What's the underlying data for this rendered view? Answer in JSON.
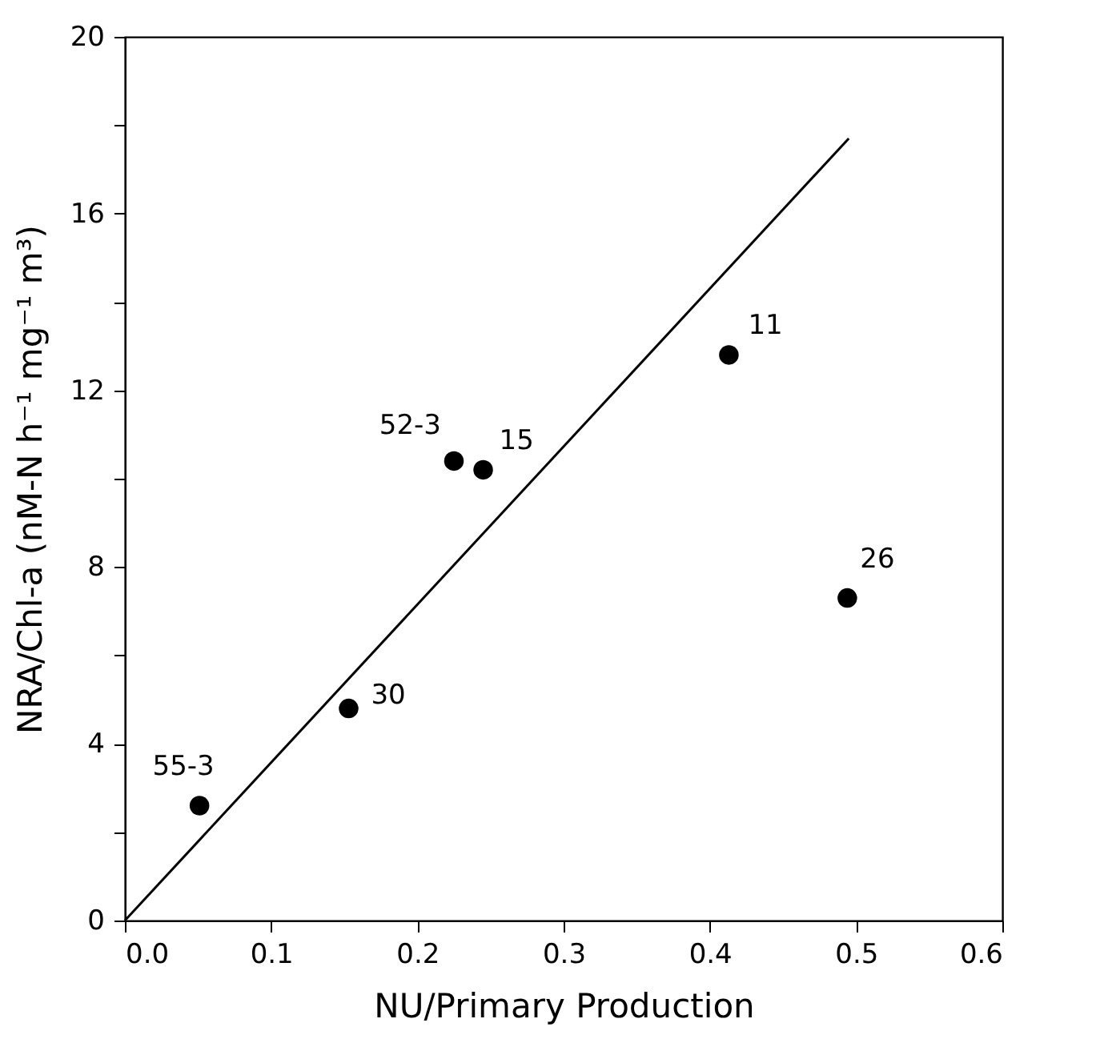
{
  "chart_data": {
    "type": "scatter",
    "xlabel": "NU/Primary Production",
    "ylabel": "NRA/Chl-a (nM-N h⁻¹ mg⁻¹ m³)",
    "xlim": [
      0,
      0.6
    ],
    "xticks": [
      {
        "value": 0,
        "label": "0.0"
      },
      0.1,
      0.2,
      0.3,
      0.4,
      0.5,
      0.6
    ],
    "ylim": [
      0,
      20
    ],
    "yticks": [
      0,
      {
        "value": 2,
        "label": null
      },
      4,
      {
        "value": 6,
        "label": null
      },
      8,
      {
        "value": 10,
        "label": null
      },
      12,
      {
        "value": 14,
        "label": null
      },
      16,
      {
        "value": 18,
        "label": null
      },
      20
    ],
    "grid": false,
    "marker": "circle",
    "series": [
      {
        "color": "#000000",
        "x": [
          0.051,
          0.153,
          0.225,
          0.245,
          0.413,
          0.494
        ],
        "values": [
          2.6,
          4.8,
          10.4,
          10.2,
          12.8,
          7.3
        ]
      },
      {
        "type": "line",
        "color": "#000000",
        "line_style": "solid",
        "marker": "none",
        "x": [
          0,
          0.495
        ],
        "values": [
          0,
          17.7
        ]
      }
    ],
    "annotations": [
      {
        "text": "55-3",
        "x": 0.051,
        "y": 2.6
      },
      {
        "text": "30",
        "x": 0.153,
        "y": 4.8
      },
      {
        "text": "52-3",
        "x": 0.225,
        "y": 10.4
      },
      {
        "text": "15",
        "x": 0.245,
        "y": 10.2
      },
      {
        "text": "11",
        "x": 0.413,
        "y": 12.8
      },
      {
        "text": "26",
        "x": 0.494,
        "y": 7.3
      }
    ]
  }
}
